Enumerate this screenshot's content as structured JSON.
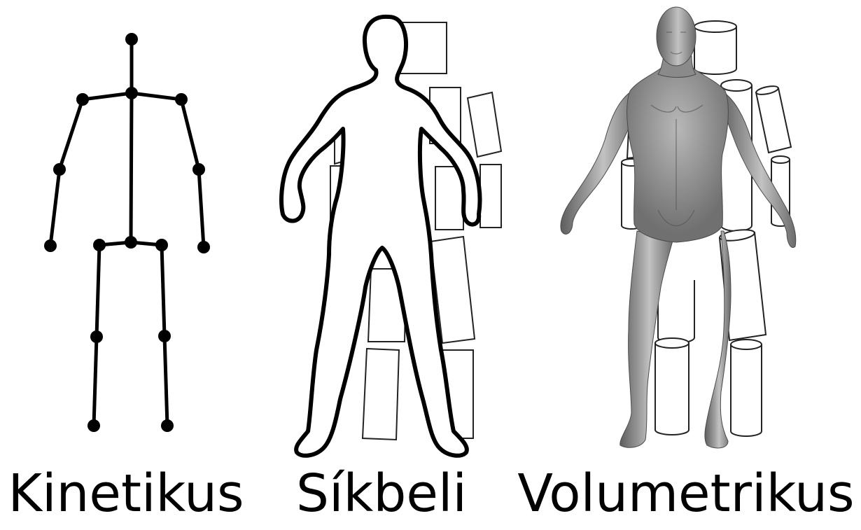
{
  "figure": {
    "panels": [
      {
        "id": "kinetic",
        "label": "Kinetikus"
      },
      {
        "id": "planar",
        "label": "Síkbeli"
      },
      {
        "id": "volumetric",
        "label": "Volumetrikus"
      }
    ]
  },
  "colors": {
    "ink": "#000000",
    "background": "#ffffff",
    "body_shade_light": "#bdbdbd",
    "body_shade_dark": "#5a5a5a"
  }
}
